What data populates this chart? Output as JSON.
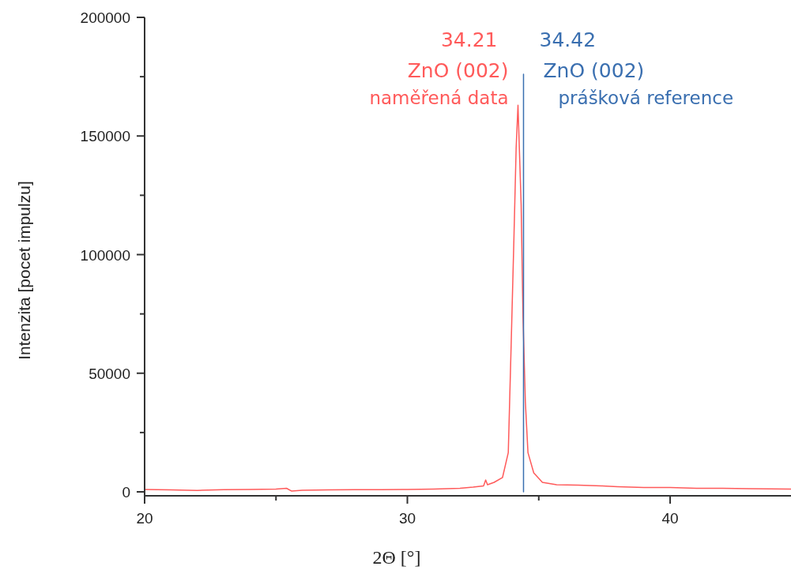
{
  "chart_data": {
    "type": "line",
    "xlabel": "2Θ [°]",
    "ylabel": "Intenzita [pocet impulzu]",
    "xlim": [
      20,
      44.6
    ],
    "xticks": [
      20,
      {
        "value": 25,
        "label": null
      },
      30,
      {
        "value": 35,
        "label": null
      },
      40
    ],
    "ylim": [
      0,
      200000
    ],
    "yticks": [
      0,
      {
        "value": 25000,
        "label": null
      },
      50000,
      {
        "value": 75000,
        "label": null
      },
      100000,
      {
        "value": 125000,
        "label": null
      },
      150000,
      {
        "value": 175000,
        "label": null
      },
      200000
    ],
    "grid": false,
    "legend": false,
    "marker": "none",
    "line_style": "solid",
    "series": [
      {
        "name": "naměřená data",
        "color": "#ff5a5a",
        "x": [
          20,
          21,
          22,
          23,
          24,
          25,
          25.4,
          25.6,
          26,
          27,
          28,
          29,
          30,
          31,
          32,
          32.5,
          32.9,
          32.98,
          33.05,
          33.3,
          33.62,
          33.84,
          33.95,
          34.06,
          34.14,
          34.21,
          34.33,
          34.4,
          34.49,
          34.59,
          34.81,
          35.14,
          35.68,
          36.5,
          37.4,
          38,
          39,
          40,
          41,
          42,
          43,
          44.6
        ],
        "values": [
          1000,
          800,
          600,
          900,
          1000,
          1200,
          1500,
          300,
          700,
          800,
          900,
          900,
          1000,
          1200,
          1500,
          2000,
          2500,
          5000,
          3000,
          4000,
          6000,
          16500,
          62000,
          109000,
          145000,
          163000,
          121000,
          74000,
          38000,
          16500,
          8000,
          4000,
          3000,
          2800,
          2500,
          2200,
          1800,
          1800,
          1500,
          1500,
          1300,
          1200
        ]
      },
      {
        "name": "prášková reference",
        "color": "#3a6fb0",
        "x": [
          34.42,
          34.42
        ],
        "values": [
          0,
          176000
        ]
      }
    ],
    "annotations": [
      "34.21",
      "ZnO (002)",
      "34.42",
      "ZnO (002)"
    ]
  }
}
